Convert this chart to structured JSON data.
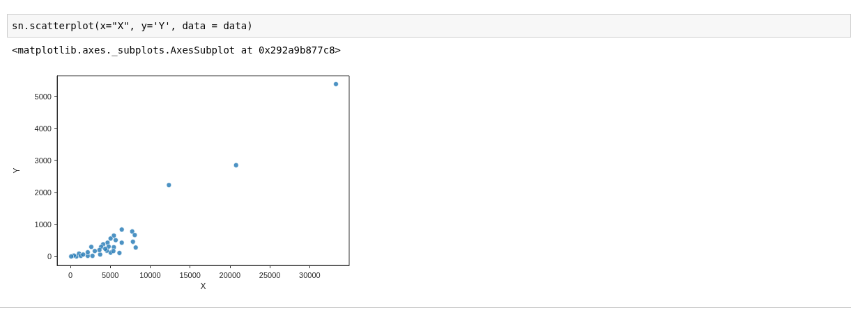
{
  "chart_data": {
    "type": "scatter",
    "xlabel": "X",
    "ylabel": "Y",
    "annotations": [
      "sn.scatterplot(x=\"X\", y='Y', data = data)",
      "<matplotlib.axes._subplots.AxesSubplot at 0x292a9b877c8>"
    ],
    "x": [
      33290,
      20770,
      12350,
      6440,
      7750,
      8070,
      7840,
      8190,
      6440,
      5450,
      5680,
      5040,
      4660,
      4110,
      3850,
      5450,
      5040,
      6150,
      4570,
      2620,
      3730,
      2180,
      760,
      1080,
      4800,
      4370,
      3640,
      440,
      100,
      2180,
      1310,
      2770,
      5390,
      1600,
      3060
    ],
    "values": [
      5380,
      2850,
      2230,
      840,
      780,
      670,
      460,
      280,
      430,
      650,
      510,
      560,
      430,
      380,
      300,
      290,
      120,
      110,
      180,
      300,
      60,
      20,
      0,
      90,
      310,
      240,
      200,
      30,
      0,
      130,
      20,
      20,
      170,
      60,
      170
    ],
    "color": "#1f77b4",
    "marker": "circle",
    "grid": false,
    "xlim": [
      -1660,
      34950
    ],
    "xticks": [
      0,
      5000,
      10000,
      15000,
      20000,
      25000,
      30000
    ],
    "ylim": [
      -280,
      5640
    ],
    "yticks": [
      0,
      1000,
      2000,
      3000,
      4000,
      5000
    ]
  }
}
